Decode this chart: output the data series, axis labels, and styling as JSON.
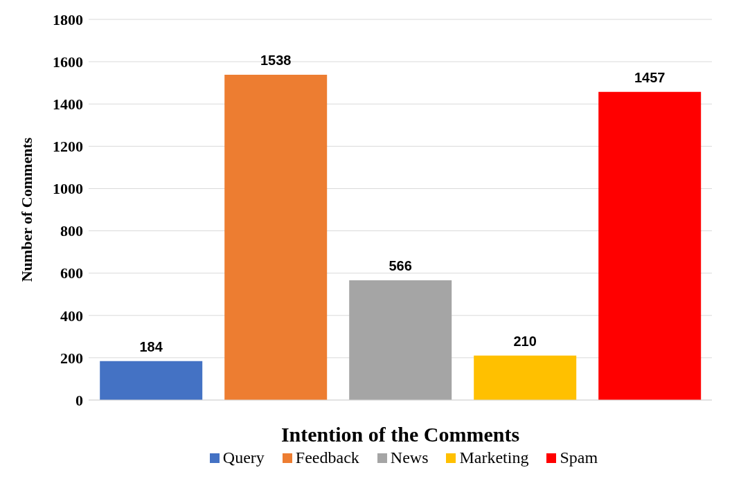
{
  "chart_data": {
    "type": "bar",
    "xlabel": "Intention of the Comments",
    "ylabel": "Number of Comments",
    "categories": [
      null,
      null,
      null,
      null,
      null
    ],
    "series": [
      {
        "name": "Query",
        "color": "#4472c4",
        "values": [
          184,
          null,
          null,
          null,
          null
        ]
      },
      {
        "name": "Feedback",
        "color": "#ed7d31",
        "values": [
          null,
          1538,
          null,
          null,
          null
        ]
      },
      {
        "name": "News",
        "color": "#a5a5a5",
        "values": [
          null,
          null,
          566,
          null,
          null
        ]
      },
      {
        "name": "Marketing",
        "color": "#ffc000",
        "values": [
          null,
          null,
          null,
          210,
          null
        ]
      },
      {
        "name": "Spam",
        "color": "#ff0000",
        "values": [
          null,
          null,
          null,
          null,
          1457
        ]
      }
    ],
    "ylim": [
      0,
      1800
    ],
    "yticks": [
      0,
      200,
      400,
      600,
      800,
      1000,
      1200,
      1400,
      1600,
      1800
    ],
    "grid": "y",
    "legend": "bottom",
    "data_labels": true
  }
}
